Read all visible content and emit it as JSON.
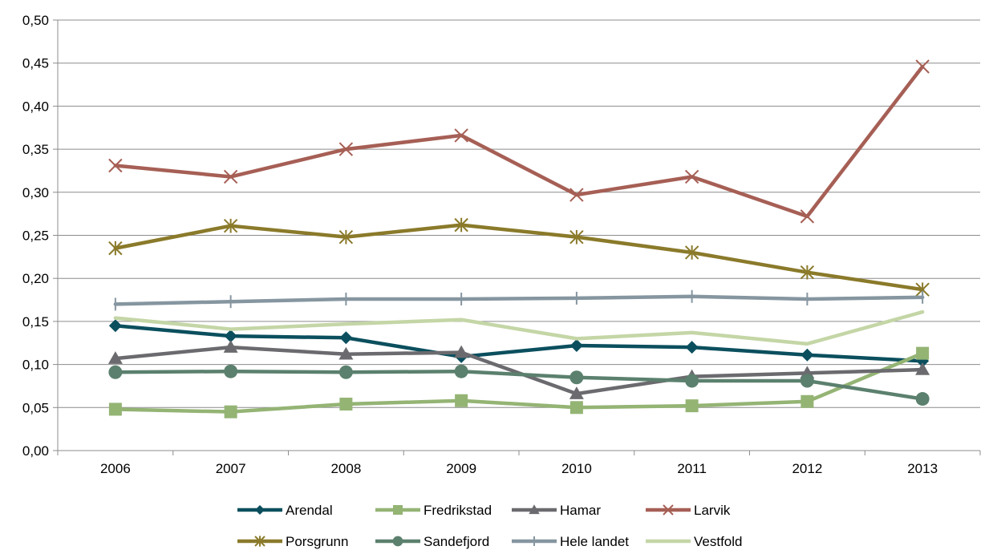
{
  "chart_data": {
    "type": "line",
    "title": "",
    "xlabel": "",
    "ylabel": "",
    "categories": [
      "2006",
      "2007",
      "2008",
      "2009",
      "2010",
      "2011",
      "2012",
      "2013"
    ],
    "ylim": [
      0,
      0.5
    ],
    "yticks": [
      "0,00",
      "0,05",
      "0,10",
      "0,15",
      "0,20",
      "0,25",
      "0,30",
      "0,35",
      "0,40",
      "0,45",
      "0,50"
    ],
    "grid": true,
    "legend_position": "bottom",
    "series": [
      {
        "name": "Arendal",
        "color": "#0b4f5e",
        "marker": "diamond",
        "values": [
          0.145,
          0.133,
          0.131,
          0.109,
          0.122,
          0.12,
          0.111,
          0.104
        ]
      },
      {
        "name": "Fredrikstad",
        "color": "#94b474",
        "marker": "square",
        "values": [
          0.048,
          0.045,
          0.054,
          0.058,
          0.05,
          0.052,
          0.057,
          0.113
        ]
      },
      {
        "name": "Hamar",
        "color": "#6b6b6f",
        "marker": "triangle",
        "values": [
          0.107,
          0.12,
          0.112,
          0.114,
          0.066,
          0.086,
          0.09,
          0.094
        ]
      },
      {
        "name": "Larvik",
        "color": "#a65f55",
        "marker": "x",
        "values": [
          0.331,
          0.318,
          0.35,
          0.366,
          0.297,
          0.318,
          0.272,
          0.446
        ]
      },
      {
        "name": "Porsgrunn",
        "color": "#8a7a2a",
        "marker": "star",
        "values": [
          0.235,
          0.261,
          0.248,
          0.262,
          0.248,
          0.23,
          0.207,
          0.187
        ]
      },
      {
        "name": "Sandefjord",
        "color": "#5b806e",
        "marker": "circle",
        "values": [
          0.091,
          0.092,
          0.091,
          0.092,
          0.085,
          0.081,
          0.081,
          0.06
        ]
      },
      {
        "name": "Hele landet",
        "color": "#8696a0",
        "marker": "plus",
        "values": [
          0.17,
          0.173,
          0.176,
          0.176,
          0.177,
          0.179,
          0.176,
          0.178
        ]
      },
      {
        "name": "Vestfold",
        "color": "#c4d6a6",
        "marker": "none",
        "values": [
          0.154,
          0.141,
          0.147,
          0.152,
          0.13,
          0.137,
          0.124,
          0.161
        ]
      }
    ]
  }
}
